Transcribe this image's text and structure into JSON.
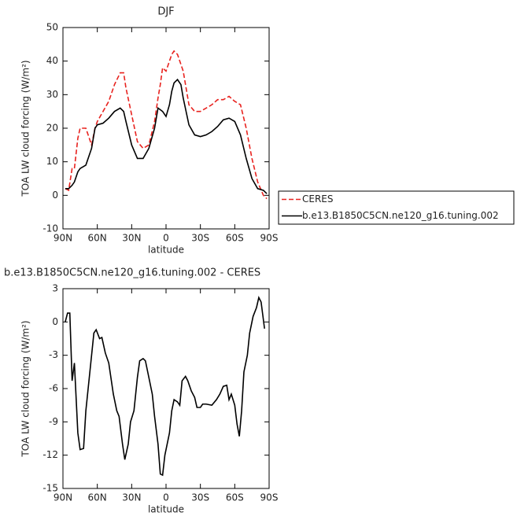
{
  "chart_data": [
    {
      "type": "line",
      "title": "DJF",
      "xlabel": "latitude",
      "ylabel": "TOA LW cloud forcing (W/m²)",
      "x": [
        88,
        85,
        82,
        80,
        77,
        75,
        70,
        65,
        62,
        60,
        55,
        50,
        45,
        40,
        37,
        35,
        30,
        25,
        20,
        15,
        10,
        7,
        5,
        3,
        0,
        -3,
        -5,
        -7,
        -10,
        -13,
        -15,
        -20,
        -25,
        -30,
        -35,
        -40,
        -45,
        -50,
        -55,
        -60,
        -65,
        -70,
        -75,
        -80,
        -85,
        -88
      ],
      "series": [
        {
          "name": "CERES",
          "color": "#e8231f",
          "dashed": true,
          "values": [
            2,
            1.5,
            8,
            8,
            17,
            20,
            20,
            15,
            20,
            22,
            25,
            28,
            33,
            36.5,
            36.5,
            32,
            24,
            16,
            14,
            15,
            22,
            29,
            33,
            38,
            37,
            40,
            42,
            43,
            42,
            39,
            37,
            27,
            25,
            25,
            26,
            27,
            28.5,
            28.5,
            29.5,
            28,
            27,
            20,
            11,
            4,
            0,
            -1
          ]
        },
        {
          "name": "b.e13.B1850C5CN.ne120_g16.tuning.002",
          "color": "#000000",
          "dashed": false,
          "values": [
            2,
            2,
            3,
            4,
            7,
            8,
            9,
            14,
            20,
            21,
            21.5,
            23,
            25,
            26,
            25,
            22,
            15,
            11,
            11,
            14,
            20,
            26,
            25.5,
            25,
            23.5,
            27,
            31,
            33.5,
            34.5,
            33,
            29,
            21,
            18,
            17.5,
            18,
            19,
            20.5,
            22.5,
            23,
            22,
            18,
            11,
            5,
            2,
            1.5,
            0.5
          ]
        }
      ],
      "xlim": [
        90,
        -90
      ],
      "xticks": [
        {
          "value": 90,
          "label": "90N"
        },
        {
          "value": 60,
          "label": "60N"
        },
        {
          "value": 30,
          "label": "30N"
        },
        0,
        {
          "value": -30,
          "label": "30S"
        },
        {
          "value": -60,
          "label": "60S"
        },
        {
          "value": -90,
          "label": "90S"
        }
      ],
      "ylim": [
        -10,
        50
      ],
      "yticks": [
        -10,
        0,
        10,
        20,
        30,
        40,
        50
      ],
      "legend": "right"
    },
    {
      "type": "line",
      "title": "b.e13.B1850C5CN.ne120_g16.tuning.002 - CERES",
      "xlabel": "latitude",
      "ylabel": "TOA LW cloud forcing (W/m²)",
      "x": [
        88,
        86,
        84,
        82,
        80,
        77,
        75,
        72,
        70,
        65,
        63,
        61,
        58,
        56,
        53,
        50,
        46,
        43,
        41,
        38,
        36,
        33,
        31,
        28,
        25,
        23,
        20,
        18,
        15,
        12,
        10,
        7,
        5,
        3,
        1,
        -3,
        -5,
        -7,
        -10,
        -12,
        -14,
        -17,
        -19,
        -22,
        -25,
        -27,
        -30,
        -32,
        -35,
        -40,
        -44,
        -47,
        -50,
        -53,
        -55,
        -57,
        -60,
        -62,
        -64,
        -66,
        -68,
        -71,
        -73,
        -76,
        -79,
        -81,
        -83,
        -86
      ],
      "series": [
        {
          "name": null,
          "color": "#000000",
          "dashed": false,
          "values": [
            0,
            0.8,
            0.8,
            -5.3,
            -3.7,
            -10,
            -11.5,
            -11.4,
            -8,
            -3,
            -1,
            -0.7,
            -1.5,
            -1.4,
            -2.8,
            -3.7,
            -6.5,
            -8,
            -8.5,
            -11,
            -12.4,
            -11,
            -9,
            -8,
            -5,
            -3.5,
            -3.3,
            -3.5,
            -5,
            -6.5,
            -8.5,
            -11,
            -13.7,
            -13.8,
            -12,
            -10,
            -8,
            -7,
            -7.2,
            -7.5,
            -5.3,
            -4.9,
            -5.3,
            -6.2,
            -6.8,
            -7.7,
            -7.7,
            -7.4,
            -7.4,
            -7.5,
            -7,
            -6.5,
            -5.8,
            -5.7,
            -7,
            -6.5,
            -7.5,
            -9.2,
            -10.3,
            -8,
            -4.5,
            -3,
            -1,
            0.5,
            1.3,
            2.2,
            1.8,
            -0.6
          ]
        }
      ],
      "xlim": [
        90,
        -90
      ],
      "xticks": [
        {
          "value": 90,
          "label": "90N"
        },
        {
          "value": 60,
          "label": "60N"
        },
        {
          "value": 30,
          "label": "30N"
        },
        0,
        {
          "value": -30,
          "label": "30S"
        },
        {
          "value": -60,
          "label": "60S"
        },
        {
          "value": -90,
          "label": "90S"
        }
      ],
      "ylim": [
        -15,
        3
      ],
      "yticks": [
        3,
        0,
        -3,
        -6,
        -9,
        -12,
        -15
      ]
    }
  ]
}
